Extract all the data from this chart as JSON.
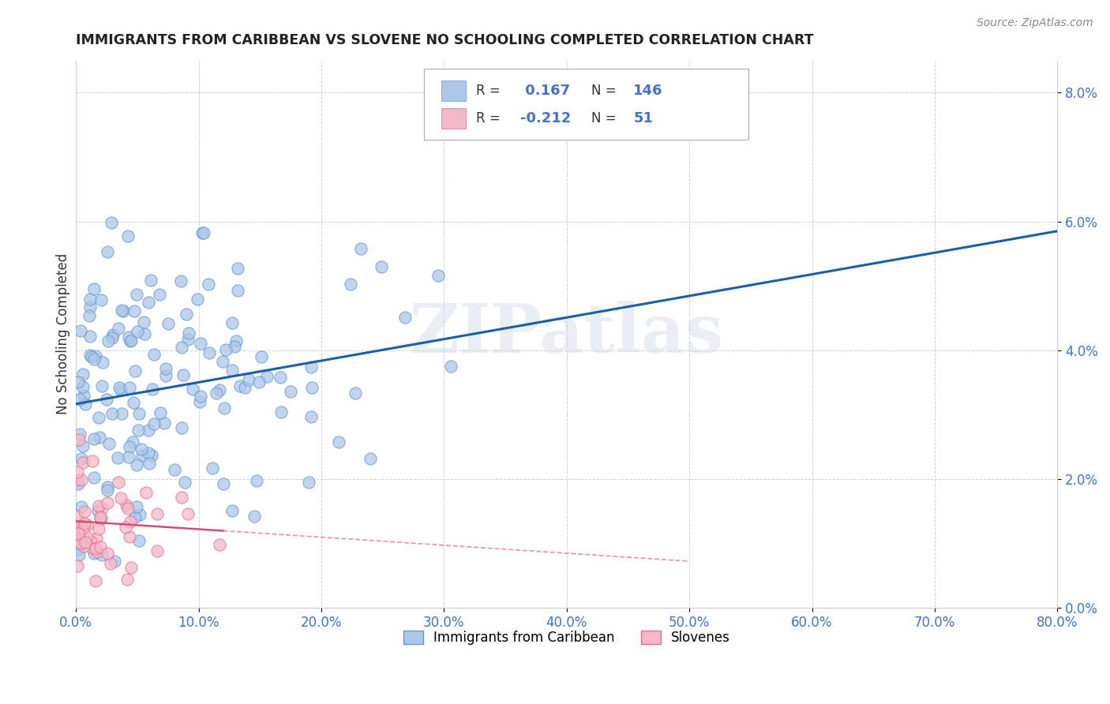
{
  "title": "IMMIGRANTS FROM CARIBBEAN VS SLOVENE NO SCHOOLING COMPLETED CORRELATION CHART",
  "source_text": "Source: ZipAtlas.com",
  "ylabel": "No Schooling Completed",
  "watermark": "ZIPatlas",
  "legend_label1": "Immigrants from Caribbean",
  "legend_label2": "Slovenes",
  "R1": 0.167,
  "N1": 146,
  "R2": -0.212,
  "N2": 51,
  "color1": "#aec6e8",
  "color2": "#f4b8c8",
  "edge_color1": "#5b9bd5",
  "edge_color2": "#e07090",
  "line_color1": "#1a5fa8",
  "line_color2": "#d05070",
  "tick_color": "#4472c4",
  "xlim": [
    0.0,
    0.8
  ],
  "ylim": [
    0.0,
    0.085
  ],
  "xticks": [
    0.0,
    0.1,
    0.2,
    0.3,
    0.4,
    0.5,
    0.6,
    0.7,
    0.8
  ],
  "yticks": [
    0.0,
    0.02,
    0.04,
    0.06,
    0.08
  ]
}
